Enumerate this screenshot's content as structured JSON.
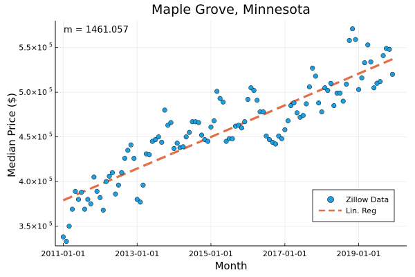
{
  "chart_data": {
    "type": "scatter",
    "title": "Maple Grove, Minnesota",
    "xlabel": "Month",
    "ylabel": "Median Price ($)",
    "annotation": "m = 1461.057",
    "x_range": [
      "2010-10-15",
      "2020-04-20"
    ],
    "y_range": [
      328000,
      580000
    ],
    "grid": true,
    "legend_position": "bottom-right",
    "x_ticks": [
      {
        "date": "2011-01-01",
        "label": "2011-01-01"
      },
      {
        "date": "2013-01-01",
        "label": "2013-01-01"
      },
      {
        "date": "2015-01-01",
        "label": "2015-01-01"
      },
      {
        "date": "2017-01-01",
        "label": "2017-01-01"
      },
      {
        "date": "2019-01-01",
        "label": "2019-01-01"
      }
    ],
    "y_ticks": [
      {
        "value": 350000,
        "base": "3.5×10",
        "exp": "5"
      },
      {
        "value": 400000,
        "base": "4.0×10",
        "exp": "5"
      },
      {
        "value": 450000,
        "base": "4.5×10",
        "exp": "5"
      },
      {
        "value": 500000,
        "base": "5.0×10",
        "exp": "5"
      },
      {
        "value": 550000,
        "base": "5.5×10",
        "exp": "5"
      }
    ],
    "series": [
      {
        "name": "Zillow Data",
        "kind": "scatter",
        "color": "#1f9ee0",
        "x": [
          "2011-01-01",
          "2011-02-01",
          "2011-03-01",
          "2011-04-01",
          "2011-05-01",
          "2011-06-01",
          "2011-07-01",
          "2011-08-01",
          "2011-09-01",
          "2011-10-01",
          "2011-11-01",
          "2011-12-01",
          "2012-01-01",
          "2012-02-01",
          "2012-03-01",
          "2012-04-01",
          "2012-05-01",
          "2012-06-01",
          "2012-07-01",
          "2012-08-01",
          "2012-09-01",
          "2012-10-01",
          "2012-11-01",
          "2012-12-01",
          "2013-01-01",
          "2013-02-01",
          "2013-03-01",
          "2013-04-01",
          "2013-05-01",
          "2013-06-01",
          "2013-07-01",
          "2013-08-01",
          "2013-09-01",
          "2013-10-01",
          "2013-11-01",
          "2013-12-01",
          "2014-01-01",
          "2014-02-01",
          "2014-03-01",
          "2014-04-01",
          "2014-05-01",
          "2014-06-01",
          "2014-07-01",
          "2014-08-01",
          "2014-09-01",
          "2014-10-01",
          "2014-11-01",
          "2014-12-01",
          "2015-01-01",
          "2015-02-01",
          "2015-03-01",
          "2015-04-01",
          "2015-05-01",
          "2015-06-01",
          "2015-07-01",
          "2015-08-01",
          "2015-09-01",
          "2015-10-01",
          "2015-11-01",
          "2015-12-01",
          "2016-01-01",
          "2016-02-01",
          "2016-03-01",
          "2016-04-01",
          "2016-05-01",
          "2016-06-01",
          "2016-07-01",
          "2016-08-01",
          "2016-09-01",
          "2016-10-01",
          "2016-11-01",
          "2016-12-01",
          "2017-01-01",
          "2017-02-01",
          "2017-03-01",
          "2017-04-01",
          "2017-05-01",
          "2017-06-01",
          "2017-07-01",
          "2017-08-01",
          "2017-09-01",
          "2017-10-01",
          "2017-11-01",
          "2017-12-01",
          "2018-01-01",
          "2018-02-01",
          "2018-03-01",
          "2018-04-01",
          "2018-05-01",
          "2018-06-01",
          "2018-07-01",
          "2018-08-01",
          "2018-09-01",
          "2018-10-01",
          "2018-11-01",
          "2018-12-01",
          "2019-01-01",
          "2019-02-01",
          "2019-03-01",
          "2019-04-01",
          "2019-05-01",
          "2019-06-01",
          "2019-07-01",
          "2019-08-01",
          "2019-09-01",
          "2019-10-01",
          "2019-11-01",
          "2019-12-01"
        ],
        "y": [
          338000,
          333000,
          350000,
          369000,
          389000,
          380000,
          388000,
          369000,
          380000,
          375000,
          405000,
          389000,
          382000,
          368000,
          400000,
          406000,
          410000,
          386000,
          396000,
          410000,
          426000,
          435000,
          441000,
          426000,
          380000,
          377000,
          396000,
          431000,
          430000,
          445000,
          447000,
          450000,
          444000,
          480000,
          463000,
          466000,
          437000,
          443000,
          438000,
          439000,
          450000,
          455000,
          467000,
          467000,
          466000,
          452000,
          447000,
          445000,
          461000,
          468000,
          501000,
          493000,
          489000,
          445000,
          448000,
          448000,
          462000,
          463000,
          460000,
          467000,
          492000,
          505000,
          502000,
          491000,
          478000,
          478000,
          451000,
          447000,
          444000,
          442000,
          451000,
          448000,
          458000,
          468000,
          485000,
          488000,
          477000,
          472000,
          474000,
          487000,
          506000,
          527000,
          518000,
          488000,
          478000,
          505000,
          502000,
          510000,
          485000,
          499000,
          499000,
          490000,
          509000,
          558000,
          571000,
          559000,
          503000,
          516000,
          533000,
          553000,
          534000,
          505000,
          510000,
          512000,
          541000,
          549000,
          548000,
          520000
        ]
      },
      {
        "name": "Lin. Reg",
        "kind": "line",
        "style": "dashed",
        "color": "#e26f46",
        "x": [
          "2011-01-01",
          "2019-12-01"
        ],
        "y": [
          379000,
          537000
        ]
      }
    ]
  }
}
